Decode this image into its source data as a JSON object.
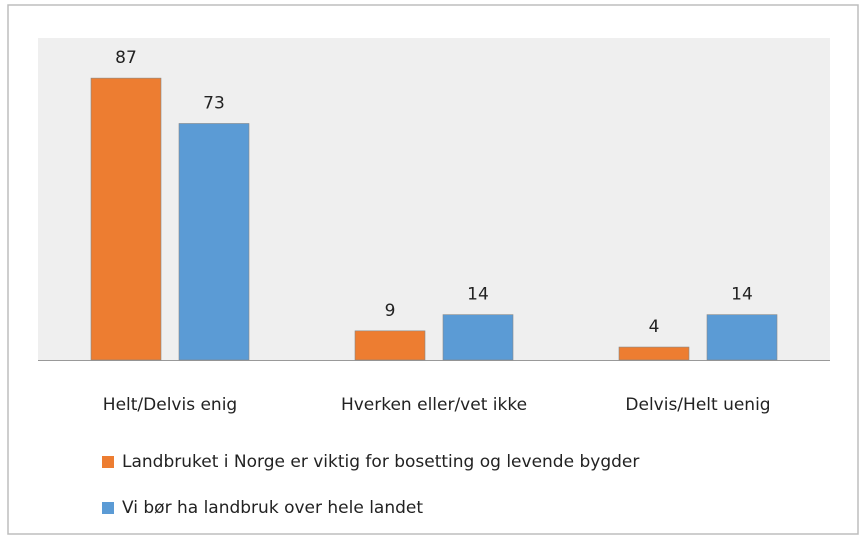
{
  "chart_data": {
    "type": "bar",
    "categories": [
      "Helt/Delvis enig",
      "Hverken eller/vet ikke",
      "Delvis/Helt uenig"
    ],
    "series": [
      {
        "name": "Landbruket i Norge er viktig for bosetting og levende bygder",
        "color": "#ed7d31",
        "values": [
          87,
          9,
          4
        ]
      },
      {
        "name": "Vi bør ha landbruk over hele landet",
        "color": "#5b9bd5",
        "values": [
          73,
          14,
          14
        ]
      }
    ],
    "legend": "bottom"
  }
}
